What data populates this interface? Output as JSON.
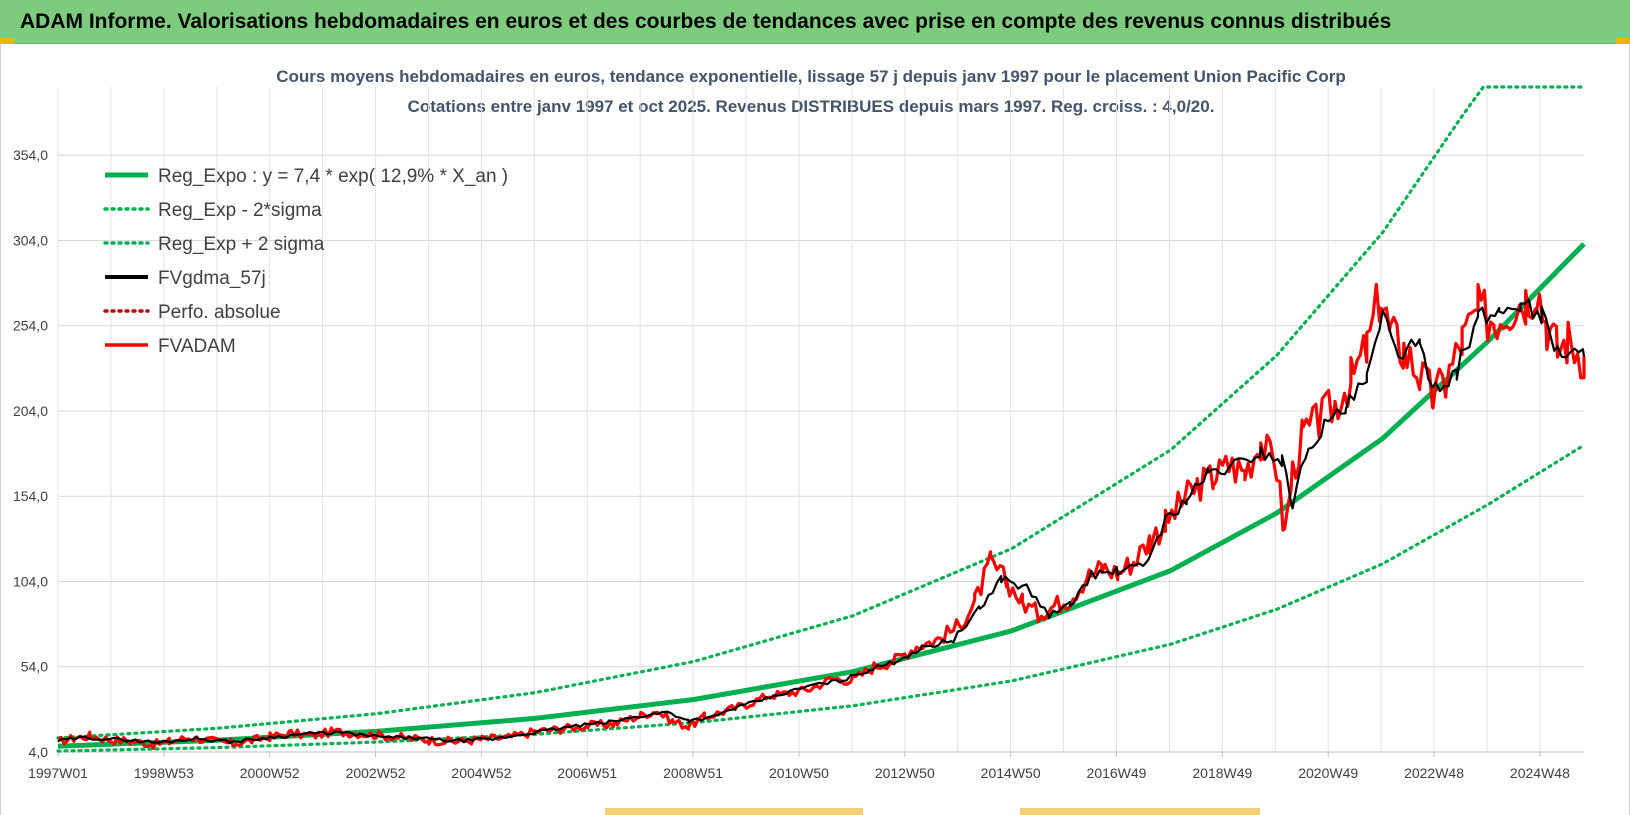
{
  "header": {
    "title": "ADAM Informe. Valorisations hebdomadaires en euros et des courbes de tendances avec prise en compte des revenus connus distribués"
  },
  "chart_data": {
    "type": "line",
    "title": "Cours moyens hebdomadaires en euros, tendance exponentielle, lissage 57 j depuis janv 1997 pour le placement Union Pacific Corp",
    "subtitle": "Cotations entre janv 1997 et oct 2025. Revenus DISTRIBUES depuis mars 1997. Reg. croiss. : 4,0/20.",
    "xlabel": "",
    "ylabel": "",
    "ylim": [
      4,
      394
    ],
    "yticks": [
      "4,0",
      "54,0",
      "104,0",
      "154,0",
      "204,0",
      "254,0",
      "304,0",
      "354,0"
    ],
    "xticks": [
      "1997W01",
      "1998W53",
      "2000W52",
      "2002W52",
      "2004W52",
      "2006W51",
      "2008W51",
      "2010W50",
      "2012W50",
      "2014W50",
      "2016W49",
      "2018W49",
      "2020W49",
      "2022W48",
      "2024W48"
    ],
    "xlim": [
      1997.0,
      2025.8
    ],
    "grid": true,
    "legend_position": "top-left",
    "series": [
      {
        "name": "Reg_Expo : y = 7,4 * exp( 12,9% *  X_an )",
        "color": "#00b050",
        "style": "solid",
        "x": [
          1997.0,
          2000.0,
          2003.0,
          2006.0,
          2009.0,
          2012.0,
          2015.0,
          2018.0,
          2020.0,
          2022.0,
          2024.0,
          2025.8
        ],
        "values": [
          7.4,
          10.9,
          16.1,
          23.7,
          34.8,
          51.1,
          75.1,
          110.4,
          144.1,
          187.9,
          245.2,
          302.0
        ]
      },
      {
        "name": "Reg_Exp - 2*sigma",
        "color": "#00b050",
        "style": "dotted",
        "x": [
          1997.0,
          2000.0,
          2003.0,
          2006.0,
          2009.0,
          2012.0,
          2015.0,
          2018.0,
          2020.0,
          2022.0,
          2024.0,
          2025.8
        ],
        "values": [
          4.5,
          6.6,
          9.8,
          14.4,
          21.2,
          31.1,
          45.7,
          67.2,
          87.7,
          114.4,
          149.3,
          184.0
        ]
      },
      {
        "name": "Reg_Exp + 2 sigma",
        "color": "#00b050",
        "style": "dotted",
        "x": [
          1997.0,
          2000.0,
          2003.0,
          2006.0,
          2009.0,
          2012.0,
          2015.0,
          2018.0,
          2020.0,
          2022.0,
          2023.5,
          2023.9,
          2025.8
        ],
        "values": [
          12.2,
          17.9,
          26.4,
          38.8,
          57.1,
          83.9,
          123.3,
          181.2,
          236.6,
          308.7,
          377.0,
          394.0,
          394.0
        ]
      },
      {
        "name": "FVgdma_57j",
        "color": "#000000",
        "style": "solid",
        "x": [
          1997.0,
          1997.5,
          1998.3,
          1998.9,
          1999.6,
          2000.3,
          2001.0,
          2001.6,
          2002.3,
          2003.0,
          2003.8,
          2004.5,
          2005.2,
          2006.0,
          2006.7,
          2007.4,
          2008.0,
          2008.5,
          2008.9,
          2009.3,
          2009.8,
          2010.5,
          2011.2,
          2011.8,
          2012.3,
          2012.8,
          2013.3,
          2013.9,
          2014.4,
          2014.8,
          2015.3,
          2015.7,
          2016.1,
          2016.5,
          2017.0,
          2017.5,
          2017.9,
          2018.3,
          2018.7,
          2019.2,
          2019.7,
          2020.1,
          2020.3,
          2020.6,
          2020.9,
          2021.3,
          2021.7,
          2022.0,
          2022.3,
          2022.7,
          2023.0,
          2023.4,
          2023.8,
          2024.2,
          2024.6,
          2025.0,
          2025.3,
          2025.8
        ],
        "values": [
          10.5,
          12.5,
          11.0,
          9.5,
          12.0,
          10.0,
          12.5,
          14.5,
          15.5,
          13.0,
          12.0,
          10.5,
          11.5,
          15.5,
          19.0,
          21.5,
          25.0,
          27.5,
          22.5,
          24.0,
          30.0,
          36.5,
          43.0,
          46.0,
          52.0,
          57.0,
          65.0,
          70.0,
          88.0,
          106.0,
          100.0,
          84.0,
          90.0,
          108.0,
          110.0,
          113.0,
          140.0,
          152.0,
          167.0,
          172.0,
          180.0,
          175.0,
          150.0,
          184.0,
          195.0,
          205.0,
          222.0,
          258.0,
          240.0,
          240.0,
          218.0,
          228.0,
          258.0,
          262.0,
          268.0,
          260.0,
          240.0,
          236.0
        ]
      },
      {
        "name": "Perfo. absolue",
        "color": "#c00000",
        "style": "dotted",
        "values": []
      },
      {
        "name": "FVADAM",
        "color": "#ff0000",
        "style": "solid",
        "x": [
          1997.0,
          1997.3,
          1997.6,
          1998.0,
          1998.4,
          1998.8,
          1999.1,
          1999.5,
          1999.9,
          2000.3,
          2000.7,
          2001.0,
          2001.4,
          2001.8,
          2002.2,
          2002.6,
          2003.0,
          2003.5,
          2004.0,
          2004.5,
          2005.0,
          2005.5,
          2006.0,
          2006.5,
          2007.0,
          2007.5,
          2008.0,
          2008.3,
          2008.6,
          2008.9,
          2009.2,
          2009.6,
          2010.0,
          2010.4,
          2010.8,
          2011.2,
          2011.6,
          2012.0,
          2012.4,
          2012.8,
          2013.2,
          2013.6,
          2014.0,
          2014.3,
          2014.6,
          2014.9,
          2015.2,
          2015.5,
          2015.8,
          2016.1,
          2016.4,
          2016.7,
          2017.0,
          2017.3,
          2017.6,
          2017.9,
          2018.2,
          2018.5,
          2018.8,
          2019.1,
          2019.4,
          2019.7,
          2020.0,
          2020.15,
          2020.3,
          2020.5,
          2020.8,
          2021.1,
          2021.4,
          2021.7,
          2021.95,
          2022.15,
          2022.4,
          2022.7,
          2022.95,
          2023.2,
          2023.5,
          2023.8,
          2024.1,
          2024.4,
          2024.7,
          2024.9,
          2025.1,
          2025.3,
          2025.5,
          2025.8
        ],
        "values": [
          10.0,
          12.0,
          13.5,
          11.0,
          10.5,
          8.5,
          10.0,
          12.5,
          10.5,
          9.0,
          11.0,
          13.0,
          15.0,
          13.5,
          16.0,
          15.0,
          14.0,
          12.5,
          11.0,
          10.0,
          11.5,
          12.5,
          16.0,
          17.5,
          19.5,
          20.5,
          25.5,
          28.0,
          22.0,
          19.0,
          24.5,
          28.0,
          32.0,
          37.0,
          38.5,
          41.0,
          47.0,
          46.0,
          54.0,
          58.0,
          66.0,
          70.0,
          78.0,
          92.0,
          115.0,
          104.0,
          92.0,
          85.0,
          90.0,
          94.0,
          106.0,
          112.0,
          109.0,
          116.0,
          128.0,
          138.0,
          150.0,
          160.0,
          165.0,
          172.0,
          168.0,
          186.0,
          170.0,
          132.0,
          168.0,
          190.0,
          198.0,
          208.0,
          222.0,
          240.0,
          272.0,
          248.0,
          240.0,
          225.0,
          212.0,
          222.0,
          245.0,
          262.0,
          258.0,
          265.0,
          270.0,
          278.0,
          255.0,
          240.0,
          245.0,
          236.0
        ]
      }
    ]
  }
}
